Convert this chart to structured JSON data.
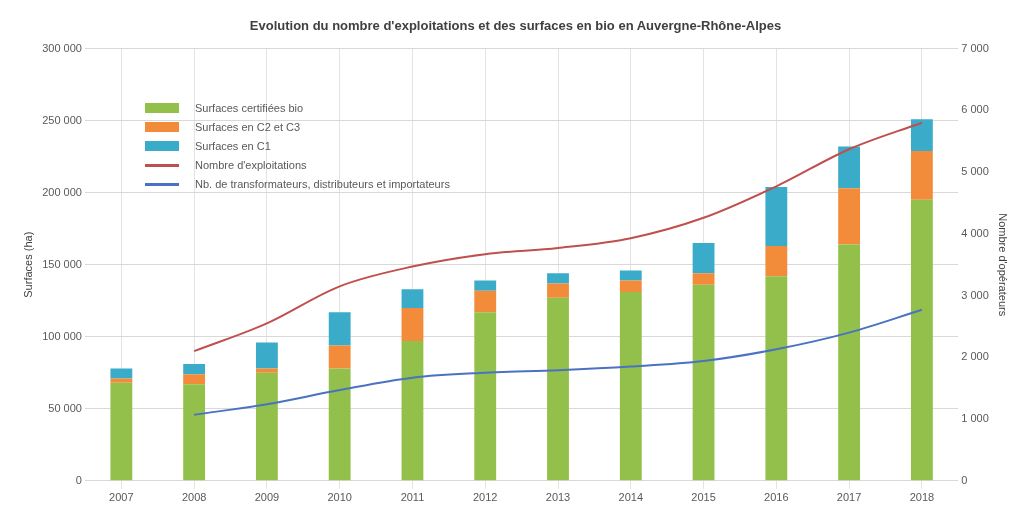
{
  "chart_data": {
    "type": "bar",
    "title": "Evolution du nombre d'exploitations et des surfaces en bio en Auvergne-Rhône-Alpes",
    "ylabel": "Surfaces (ha)",
    "y2label": "Nombre d'opérateurs",
    "categories": [
      "2007",
      "2008",
      "2009",
      "2010",
      "2011",
      "2012",
      "2013",
      "2014",
      "2015",
      "2016",
      "2017",
      "2018"
    ],
    "stacked": true,
    "grid": true,
    "legend": "top left",
    "ylim": [
      0,
      300000
    ],
    "yticks": [
      {
        "value": 0,
        "label": "0"
      },
      {
        "value": 50000,
        "label": "50 000"
      },
      {
        "value": 100000,
        "label": "100 000"
      },
      {
        "value": 150000,
        "label": "150 000"
      },
      {
        "value": 200000,
        "label": "200 000"
      },
      {
        "value": 250000,
        "label": "250 000"
      },
      {
        "value": 300000,
        "label": "300 000"
      }
    ],
    "y2lim": [
      0,
      7000
    ],
    "y2ticks": [
      {
        "value": 0,
        "label": "0"
      },
      {
        "value": 1000,
        "label": "1 000"
      },
      {
        "value": 2000,
        "label": "2 000"
      },
      {
        "value": 3000,
        "label": "3 000"
      },
      {
        "value": 4000,
        "label": "4 000"
      },
      {
        "value": 5000,
        "label": "5 000"
      },
      {
        "value": 6000,
        "label": "6 000"
      },
      {
        "value": 7000,
        "label": "7 000"
      }
    ],
    "series": [
      {
        "name": "Surfaces certifiées bio",
        "color": "#92c04a",
        "values": [
          68000,
          67000,
          75000,
          78000,
          97000,
          117000,
          127000,
          131000,
          136000,
          142000,
          164000,
          195000
        ]
      },
      {
        "name": "Surfaces en C2 et C3",
        "color": "#f28c3a",
        "values": [
          3000,
          7000,
          3000,
          16000,
          23000,
          15000,
          10000,
          8000,
          8000,
          21000,
          39000,
          34000
        ]
      },
      {
        "name": "Surfaces en C1",
        "color": "#3aabc8",
        "values": [
          7000,
          7000,
          18000,
          23000,
          13000,
          7000,
          7000,
          7000,
          21000,
          41000,
          29000,
          22000
        ]
      },
      {
        "name": "Nombre d'exploitations",
        "type": "line",
        "axis": "y2",
        "color": "#c0504d",
        "values": [
          null,
          2100,
          2550,
          3150,
          3470,
          3670,
          3770,
          3930,
          4260,
          4770,
          5370,
          5800
        ]
      },
      {
        "name": "Nb. de transformateurs, distributeurs et importateurs",
        "type": "line",
        "axis": "y2",
        "color": "#4a72c2",
        "values": [
          null,
          1070,
          1240,
          1470,
          1670,
          1750,
          1790,
          1850,
          1940,
          2130,
          2400,
          2770
        ]
      }
    ]
  }
}
